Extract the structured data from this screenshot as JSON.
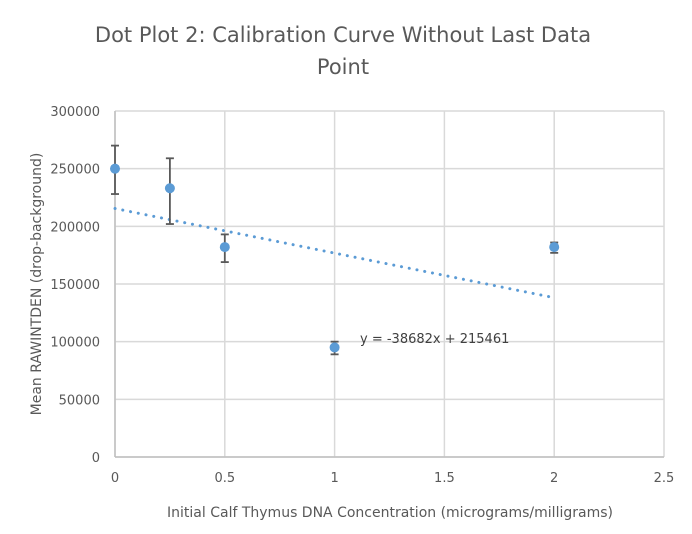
{
  "chart_data": {
    "type": "scatter",
    "title_lines": [
      "Dot Plot 2: Calibration Curve Without Last Data",
      "Point"
    ],
    "xlabel": "Initial Calf Thymus DNA Concentration (micrograms/milligrams)",
    "ylabel": "Mean RAWINTDEN (drop-background)",
    "xlim": [
      0,
      2.5
    ],
    "ylim": [
      0,
      300000
    ],
    "x_ticks": [
      "0",
      "0.5",
      "1",
      "1.5",
      "2",
      "2.5"
    ],
    "x_tick_values": [
      0,
      0.5,
      1,
      1.5,
      2,
      2.5
    ],
    "y_ticks": [
      "0",
      "50000",
      "100000",
      "150000",
      "200000",
      "250000",
      "300000"
    ],
    "y_tick_values": [
      0,
      50000,
      100000,
      150000,
      200000,
      250000,
      300000
    ],
    "grid": true,
    "series": [
      {
        "name": "Mean RAWINTDEN",
        "color": "#5B9BD5",
        "points": [
          {
            "x": 0,
            "y": 250000,
            "err_low": 22000,
            "err_high": 20000
          },
          {
            "x": 0.25,
            "y": 233000,
            "err_low": 31000,
            "err_high": 26000
          },
          {
            "x": 0.5,
            "y": 182000,
            "err_low": 13000,
            "err_high": 11000
          },
          {
            "x": 1,
            "y": 95000,
            "err_low": 6000,
            "err_high": 5000
          },
          {
            "x": 2,
            "y": 182000,
            "err_low": 5000,
            "err_high": 4000
          }
        ]
      }
    ],
    "trendline": {
      "type": "linear",
      "slope": -38682,
      "intercept": 215461,
      "x_range": [
        0,
        2
      ],
      "color": "#5B9BD5",
      "equation_label": "y = -38682x + 215461"
    },
    "colors": {
      "grid": "#d9d9d9",
      "error_bar": "#595959",
      "text": "#595959"
    }
  }
}
